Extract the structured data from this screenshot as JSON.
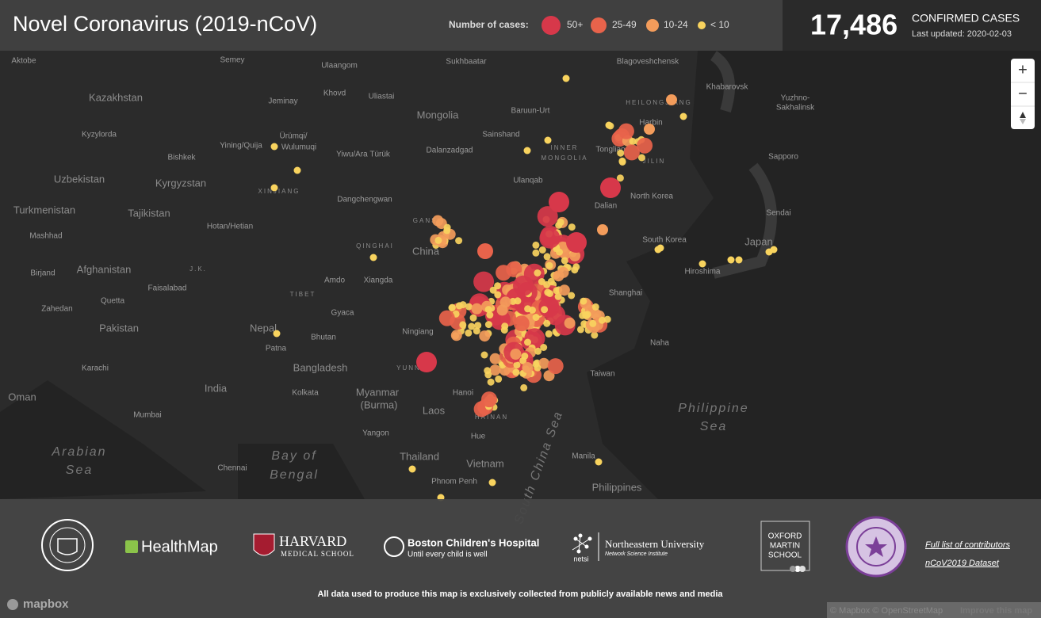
{
  "header": {
    "title": "Novel Coronavirus (2019-nCoV)",
    "legend_title": "Number of cases:",
    "legend": [
      {
        "label": "50+",
        "color": "#d7384a"
      },
      {
        "label": "25-49",
        "color": "#e8634b"
      },
      {
        "label": "10-24",
        "color": "#f39c5b"
      },
      {
        "label": "< 10",
        "color": "#f8d35e"
      }
    ],
    "total": "17,486",
    "total_label": "CONFIRMED CASES",
    "updated": "Last updated: 2020-02-03"
  },
  "controls": {
    "zoom_in": "+",
    "zoom_out": "−"
  },
  "map_labels": [
    "Aktobe",
    "Semey",
    "Ulaangom",
    "Sukhbaatar",
    "Blagoveshchensk",
    "Kazakhstan",
    "Khovd",
    "Uliastai",
    "Jeminay",
    "Khabarovsk",
    "Mongolia",
    "Baruun-Urt",
    "HEILONGJIANG",
    "Yuzhno-",
    "Sakhalinsk",
    "Kyzylorda",
    "Ürümqi/",
    "Wulumuqi",
    "Yining/Quija",
    "Sainshand",
    "Harbin",
    "Bishkek",
    "Yiwu/Ara Türük",
    "Dalanzadgad",
    "INNER",
    "MONGOLIA",
    "Tongliao",
    "Uzbekistan",
    "Kyrgyzstan",
    "Ulanqab",
    "JILIN",
    "Sapporo",
    "XINJIANG",
    "Dangchengwan",
    "Dalian",
    "North Korea",
    "Turkmenistan",
    "Tajikistan",
    "Sendai",
    "GANSU",
    "Hotan/Hetian",
    "South Korea",
    "QINGHAI",
    "China",
    "Japan",
    "Mashhad",
    "Birjand",
    "Afghanistan",
    "J.K.",
    "Hiroshima",
    "Amdo",
    "Xiangda",
    "Faisalabad",
    "Shanghai",
    "Zahedan",
    "Quetta",
    "TIBET",
    "Gyaca",
    "Pakistan",
    "Nepal",
    "Bhutan",
    "Ningiang",
    "Naha",
    "Patna",
    "Bangladesh",
    "YUNNAN",
    "Taiwan",
    "Karachi",
    "India",
    "Kolkata",
    "Myanmar",
    "(Burma)",
    "Hanoi",
    "Philippine",
    "Sea",
    "Mumbai",
    "Laos",
    "HAINAN",
    "Yangon",
    "Hue",
    "Arabian",
    "Sea",
    "Bay of",
    "Bengal",
    "Thailand",
    "Vietnam",
    "Manila",
    "Chennai",
    "Phnom Penh",
    "Philippines",
    "South China Sea",
    "Oman"
  ],
  "footer": {
    "healthmap": "HealthMap",
    "harvard": "HARVARD",
    "harvard_sub": "MEDICAL SCHOOL",
    "boston": "Boston Children's Hospital",
    "boston_sub": "Until every child is well",
    "netsi": "netsi",
    "northeastern": "Northeastern University",
    "northeastern_sub": "Network Science Institute",
    "oxford_martin": [
      "OXFORD",
      "MARTIN",
      "SCHOOL"
    ],
    "links": [
      "Full list of contributors",
      "nCoV2019 Dataset"
    ],
    "note": "All data used to produce this map is exclusively collected from publicly available news and media",
    "mapbox": "mapbox",
    "attribution": "© Mapbox © OpenStreetMap",
    "improve": "Improve this map"
  }
}
